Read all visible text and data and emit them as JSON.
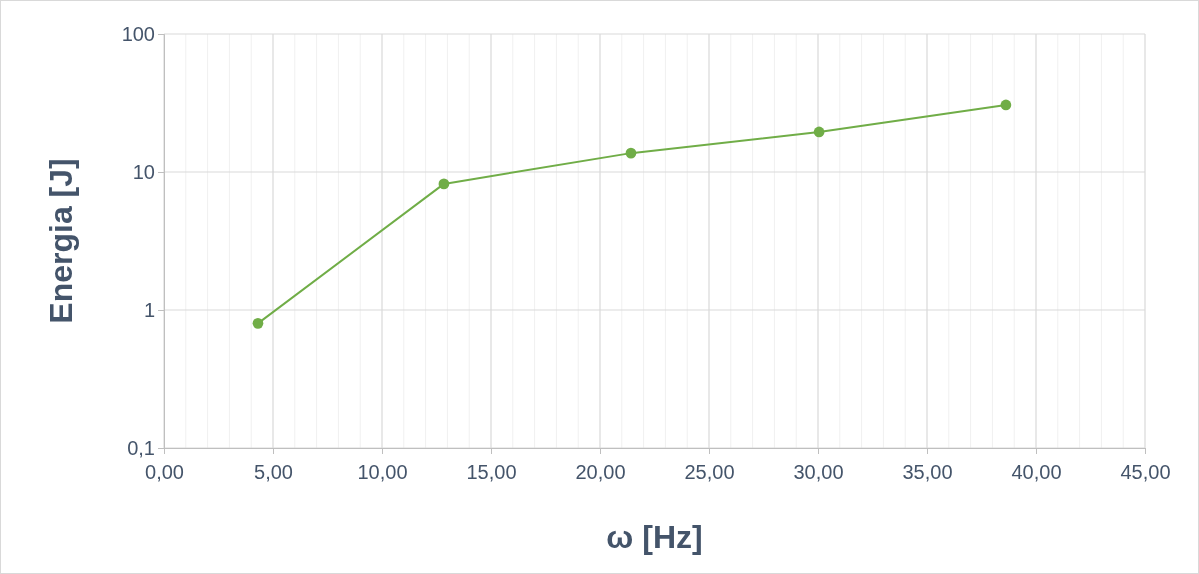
{
  "chart_data": {
    "type": "line",
    "xlabel": "ω [Hz]",
    "ylabel": "Energia [J]",
    "x": [
      4.31,
      12.84,
      21.42,
      30.05,
      38.62
    ],
    "series": [
      {
        "color": "#70ad47",
        "values": [
          0.8,
          8.2,
          13.7,
          19.5,
          30.6
        ]
      }
    ],
    "xlim": [
      0,
      45
    ],
    "xticks": [
      {
        "value": 0,
        "label": "0,00"
      },
      {
        "value": 5,
        "label": "5,00"
      },
      {
        "value": 10,
        "label": "10,00"
      },
      {
        "value": 15,
        "label": "15,00"
      },
      {
        "value": 20,
        "label": "20,00"
      },
      {
        "value": 25,
        "label": "25,00"
      },
      {
        "value": 30,
        "label": "30,00"
      },
      {
        "value": 35,
        "label": "35,00"
      },
      {
        "value": 40,
        "label": "40,00"
      },
      {
        "value": 45,
        "label": "45,00"
      }
    ],
    "ylim": [
      0.1,
      100
    ],
    "yticks": [
      {
        "value": 0.1,
        "label": "0,1"
      },
      1,
      10,
      100
    ],
    "log": "y",
    "grid": true,
    "marker": "circle",
    "line_style": "solid"
  }
}
